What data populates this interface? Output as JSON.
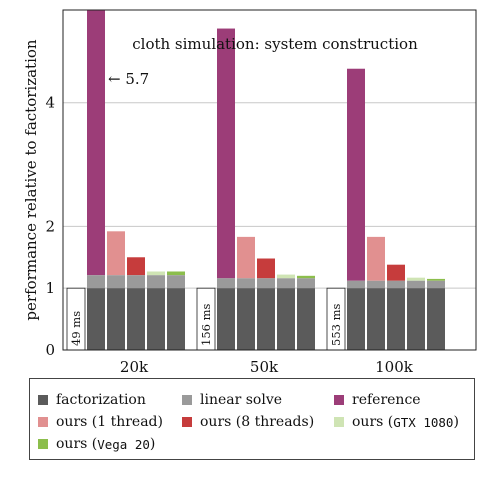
{
  "chart_data": {
    "type": "bar",
    "title": "cloth simulation: system construction",
    "ylabel": "performance relative to factorization",
    "xlabel": "",
    "ylim": [
      0,
      5.5
    ],
    "yticks": [
      0,
      1,
      2,
      4
    ],
    "grid": true,
    "categories": [
      "20k",
      "50k",
      "100k"
    ],
    "factorization_times": [
      "49 ms",
      "156 ms",
      "553 ms"
    ],
    "annotation": "← 5.7",
    "series": [
      {
        "name": "factorization",
        "values": [
          1,
          1,
          1
        ]
      },
      {
        "name": "reference",
        "values": [
          5.7,
          5.2,
          4.55
        ]
      },
      {
        "name": "ours (1 thread)",
        "values": [
          1.92,
          1.83,
          1.83
        ]
      },
      {
        "name": "ours (8 threads)",
        "values": [
          1.5,
          1.48,
          1.38
        ]
      },
      {
        "name": "ours (GTX 1080)",
        "values": [
          1.27,
          1.22,
          1.17
        ]
      },
      {
        "name": "ours (Vega 20)",
        "values": [
          1.27,
          1.2,
          1.15
        ]
      }
    ],
    "linear_solve": [
      0.21,
      0.16,
      0.12
    ],
    "colors": {
      "factorization": "#5b5b5b",
      "linear solve": "#9a9a9a",
      "reference": "#9c3d78",
      "ours (1 thread)": "#e19090",
      "ours (8 threads)": "#c63c3c",
      "ours (GTX 1080)": "#cfe4b4",
      "ours (Vega 20)": "#8cbe4c"
    }
  },
  "legend": {
    "items": [
      {
        "label": "factorization",
        "color": "#5b5b5b",
        "mono": ""
      },
      {
        "label": "linear solve",
        "color": "#9a9a9a",
        "mono": ""
      },
      {
        "label": "reference",
        "color": "#9c3d78",
        "mono": ""
      },
      {
        "label": "ours (1 thread)",
        "color": "#e19090",
        "mono": ""
      },
      {
        "label": "ours (8 threads)",
        "color": "#c63c3c",
        "mono": ""
      },
      {
        "label": "ours (",
        "color": "#cfe4b4",
        "mono": "GTX 1080",
        "tail": ")"
      },
      {
        "label": "ours (",
        "color": "#8cbe4c",
        "mono": "Vega 20",
        "tail": ")"
      }
    ]
  }
}
